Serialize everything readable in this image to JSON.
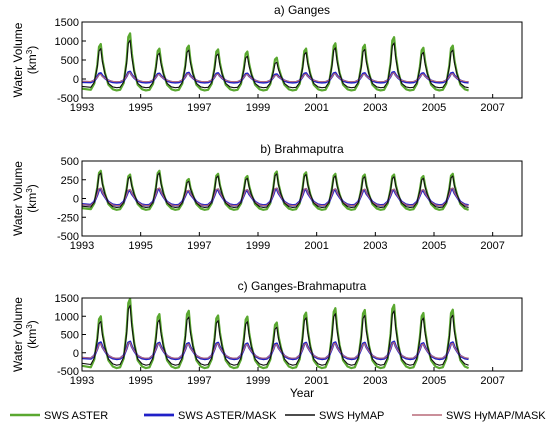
{
  "chart_data": {
    "type": "line",
    "xlabel": "Year",
    "legend_placement": "bottom",
    "series": [
      {
        "name": "SWS ASTER",
        "color": "#5aa830"
      },
      {
        "name": "SWS ASTER/MASK",
        "color": "#2020c8"
      },
      {
        "name": "SWS HyMAP",
        "color": "#111111"
      },
      {
        "name": "SWS HyMAP/MASK",
        "color": "#b86a78"
      }
    ],
    "x_ticks": [
      "1993",
      "1995",
      "1997",
      "1999",
      "2001",
      "2003",
      "2005",
      "2007"
    ],
    "xlim": [
      1993,
      2008
    ],
    "panels": [
      {
        "title": "a) Ganges",
        "ylabel_line1": "Water Volume",
        "ylabel_line2": "(km",
        "ylabel_sup": "3",
        "ylabel_close": ")",
        "ylim": [
          -500,
          1500
        ],
        "y_ticks": [
          "1500",
          "1000",
          "500",
          "0",
          "-500"
        ],
        "peaks": {
          "aster": [
            920,
            1200,
            800,
            880,
            780,
            720,
            560,
            800,
            940,
            900,
            1100,
            820,
            880
          ],
          "hymap": [
            800,
            1020,
            680,
            760,
            660,
            600,
            440,
            700,
            820,
            780,
            950,
            700,
            760
          ],
          "aster_mask": [
            150,
            190,
            140,
            160,
            150,
            140,
            120,
            150,
            160,
            150,
            180,
            150,
            160
          ],
          "hymap_mask": [
            120,
            170,
            120,
            140,
            130,
            120,
            100,
            130,
            140,
            130,
            160,
            130,
            140
          ]
        },
        "troughs": {
          "aster": -300,
          "hymap": -230,
          "aster_mask": -90,
          "hymap_mask": -70
        }
      },
      {
        "title": "b) Brahmaputra",
        "ylabel_line1": "Water Volume",
        "ylabel_line2": "(km",
        "ylabel_sup": "3",
        "ylabel_close": ")",
        "ylim": [
          -500,
          500
        ],
        "y_ticks": [
          "500",
          "250",
          "0",
          "-250",
          "-500"
        ],
        "peaks": {
          "aster": [
            370,
            320,
            370,
            260,
            330,
            300,
            360,
            350,
            330,
            320,
            320,
            300,
            330
          ],
          "hymap": [
            340,
            290,
            340,
            230,
            300,
            270,
            330,
            320,
            300,
            290,
            290,
            270,
            300
          ],
          "aster_mask": [
            130,
            110,
            130,
            100,
            120,
            110,
            130,
            125,
            120,
            115,
            115,
            110,
            130
          ],
          "hymap_mask": [
            140,
            120,
            140,
            110,
            130,
            120,
            140,
            135,
            130,
            125,
            125,
            120,
            140
          ]
        },
        "troughs": {
          "aster": -150,
          "hymap": -120,
          "aster_mask": -90,
          "hymap_mask": -95
        }
      },
      {
        "title": "c) Ganges-Brahmaputra",
        "ylabel_line1": "Water Volume",
        "ylabel_line2": "(km",
        "ylabel_sup": "3",
        "ylabel_close": ")",
        "ylim": [
          -500,
          1500
        ],
        "y_ticks": [
          "1500",
          "1000",
          "500",
          "0",
          "-500"
        ],
        "peaks": {
          "aster": [
            1000,
            1480,
            1060,
            1150,
            1020,
            990,
            830,
            1100,
            1220,
            1170,
            1310,
            1090,
            1180
          ],
          "hymap": [
            860,
            1300,
            900,
            980,
            880,
            850,
            700,
            960,
            1070,
            1020,
            1150,
            950,
            1030
          ],
          "aster_mask": [
            280,
            300,
            270,
            260,
            270,
            250,
            250,
            270,
            280,
            270,
            300,
            260,
            280
          ],
          "hymap_mask": [
            250,
            280,
            250,
            240,
            250,
            230,
            230,
            250,
            260,
            250,
            280,
            240,
            260
          ]
        },
        "troughs": {
          "aster": -420,
          "hymap": -340,
          "aster_mask": -170,
          "hymap_mask": -150
        }
      }
    ]
  }
}
